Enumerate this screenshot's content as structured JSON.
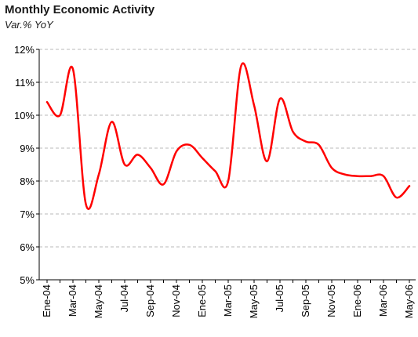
{
  "chart_data": {
    "type": "line",
    "title": "Monthly Economic Activity",
    "subtitle": "Var.% YoY",
    "xlabel": "",
    "ylabel": "",
    "ylim": [
      5,
      12
    ],
    "y_ticks": [
      "5%",
      "6%",
      "7%",
      "8%",
      "9%",
      "10%",
      "11%",
      "12%"
    ],
    "x_tick_labels": [
      "Ene-04",
      "Mar-04",
      "May-04",
      "Jul-04",
      "Sep-04",
      "Nov-04",
      "Ene-05",
      "Mar-05",
      "May-05",
      "Jul-05",
      "Sep-05",
      "Nov-05",
      "Ene-06",
      "Mar-06",
      "May-06"
    ],
    "grid": "horizontal dashed",
    "line_color": "#ff0000",
    "series": [
      {
        "x": [
          "Ene-04",
          "Feb-04",
          "Mar-04",
          "Abr-04",
          "May-04",
          "Jun-04",
          "Jul-04",
          "Ago-04",
          "Sep-04",
          "Oct-04",
          "Nov-04",
          "Dic-04",
          "Ene-05",
          "Feb-05",
          "Mar-05",
          "Abr-05",
          "May-05",
          "Jun-05",
          "Jul-05",
          "Ago-05",
          "Sep-05",
          "Oct-05",
          "Nov-05",
          "Dic-05",
          "Ene-06",
          "Feb-06",
          "Mar-06",
          "Abr-06",
          "May-06"
        ],
        "values": [
          10.4,
          10.0,
          11.4,
          7.3,
          8.2,
          9.8,
          8.5,
          8.8,
          8.4,
          7.9,
          8.9,
          9.1,
          8.7,
          8.3,
          8.0,
          11.5,
          10.3,
          8.6,
          10.5,
          9.5,
          9.2,
          9.1,
          8.4,
          8.2,
          8.15,
          8.15,
          8.15,
          7.5,
          7.85
        ]
      }
    ]
  }
}
